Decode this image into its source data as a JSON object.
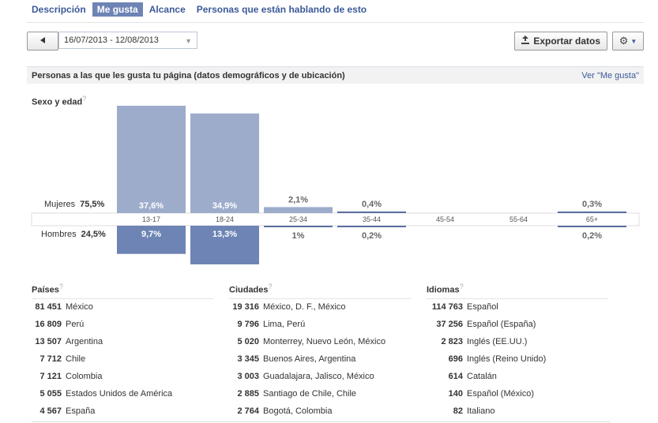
{
  "tabs": [
    {
      "label": "Descripción",
      "active": false
    },
    {
      "label": "Me gusta",
      "active": true
    },
    {
      "label": "Alcance",
      "active": false
    },
    {
      "label": "Personas que están hablando de esto",
      "active": false
    }
  ],
  "toolbar": {
    "date_range": "16/07/2013 - 12/08/2013",
    "export_label": "Exportar datos"
  },
  "section": {
    "title": "Personas a las que les gusta tu página (datos demográficos y de ubicación)",
    "link": "Ver \"Me gusta\""
  },
  "demographics": {
    "title": "Sexo y edad",
    "help": "?",
    "women_label": "Mujeres",
    "women_total": "75,5%",
    "men_label": "Hombres",
    "men_total": "24,5%"
  },
  "chart_data": {
    "type": "bar",
    "categories": [
      "13-17",
      "18-24",
      "25-34",
      "35-44",
      "45-54",
      "55-64",
      "65+"
    ],
    "series": [
      {
        "name": "Mujeres",
        "values": [
          37.6,
          34.9,
          2.1,
          0.4,
          null,
          null,
          0.3
        ],
        "labels": [
          "37,6%",
          "34,9%",
          "2,1%",
          "0,4%",
          "",
          "",
          "0,3%"
        ]
      },
      {
        "name": "Hombres",
        "values": [
          9.7,
          13.3,
          1.0,
          0.2,
          null,
          null,
          0.2
        ],
        "labels": [
          "9,7%",
          "13,3%",
          "1%",
          "0,2%",
          "",
          "",
          "0,2%"
        ]
      }
    ],
    "colors": {
      "women": "#9daccb",
      "men": "#6d84b4",
      "line": "#5a6f9e"
    }
  },
  "countries": {
    "title": "Países",
    "items": [
      {
        "count": "81 451",
        "name": "México"
      },
      {
        "count": "16 809",
        "name": "Perú"
      },
      {
        "count": "13 507",
        "name": "Argentina"
      },
      {
        "count": "7 712",
        "name": "Chile"
      },
      {
        "count": "7 121",
        "name": "Colombia"
      },
      {
        "count": "5 055",
        "name": "Estados Unidos de América"
      },
      {
        "count": "4 567",
        "name": "España"
      }
    ]
  },
  "cities": {
    "title": "Ciudades",
    "items": [
      {
        "count": "19 316",
        "name": "México, D. F., México"
      },
      {
        "count": "9 796",
        "name": "Lima, Perú"
      },
      {
        "count": "5 020",
        "name": "Monterrey, Nuevo León, México"
      },
      {
        "count": "3 345",
        "name": "Buenos Aires, Argentina"
      },
      {
        "count": "3 003",
        "name": "Guadalajara, Jalisco, México"
      },
      {
        "count": "2 885",
        "name": "Santiago de Chile, Chile"
      },
      {
        "count": "2 764",
        "name": "Bogotá, Colombia"
      }
    ]
  },
  "languages": {
    "title": "Idiomas",
    "items": [
      {
        "count": "114 763",
        "name": "Español"
      },
      {
        "count": "37 256",
        "name": "Español (España)"
      },
      {
        "count": "2 823",
        "name": "Inglés (EE.UU.)"
      },
      {
        "count": "696",
        "name": "Inglés (Reino Unido)"
      },
      {
        "count": "614",
        "name": "Catalán"
      },
      {
        "count": "140",
        "name": "Español (México)"
      },
      {
        "count": "82",
        "name": "Italiano"
      }
    ]
  }
}
